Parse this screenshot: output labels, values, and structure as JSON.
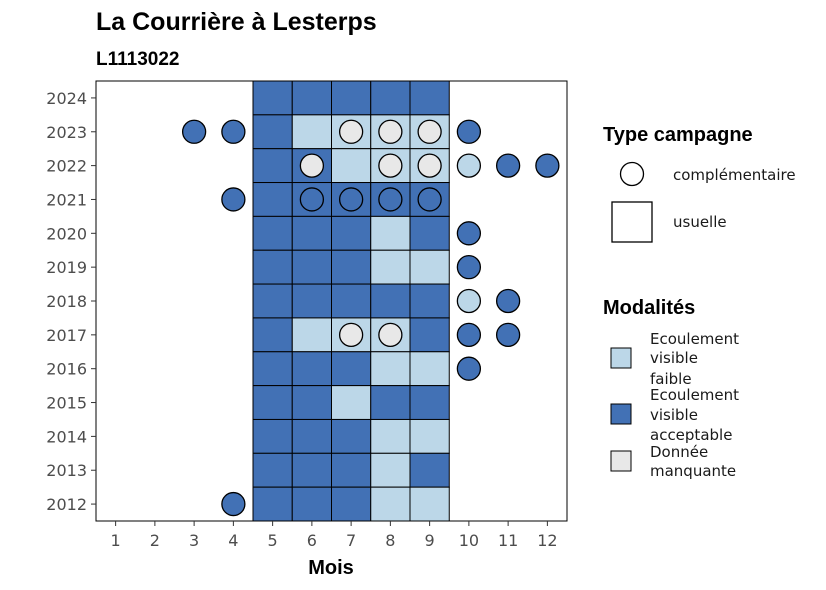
{
  "chart_data": {
    "type": "heatmap",
    "title": "La Courrière à Lesterps",
    "subtitle": "L1113022",
    "xlabel": "Mois",
    "ylabel": "",
    "x_ticks": [
      1,
      2,
      3,
      4,
      5,
      6,
      7,
      8,
      9,
      10,
      11,
      12
    ],
    "y_ticks": [
      2012,
      2013,
      2014,
      2015,
      2016,
      2017,
      2018,
      2019,
      2020,
      2021,
      2022,
      2023,
      2024
    ],
    "xlim": [
      0.5,
      12.5
    ],
    "ylim": [
      2011.5,
      2024.5
    ],
    "grid": false,
    "colors": {
      "faible": "#bcd7e8",
      "acceptable": "#4271b5",
      "manquante": "#e8e8e8"
    },
    "usuelle": [
      {
        "year": 2024,
        "months": [
          [
            "acceptable"
          ],
          [
            "acceptable"
          ],
          [
            "acceptable"
          ],
          [
            "acceptable"
          ],
          [
            "acceptable"
          ]
        ]
      },
      {
        "year": 2023,
        "cells": [
          "acceptable",
          "faible",
          "faible",
          "faible",
          "faible"
        ]
      },
      {
        "year": 2022,
        "cells": [
          "acceptable",
          "acceptable",
          "faible",
          "faible",
          "faible"
        ]
      },
      {
        "year": 2021,
        "cells": [
          "acceptable",
          "acceptable",
          "acceptable",
          "acceptable",
          "acceptable"
        ]
      },
      {
        "year": 2020,
        "cells": [
          "acceptable",
          "acceptable",
          "acceptable",
          "faible",
          "acceptable"
        ]
      },
      {
        "year": 2019,
        "cells": [
          "acceptable",
          "acceptable",
          "acceptable",
          "faible",
          "faible"
        ]
      },
      {
        "year": 2018,
        "cells": [
          "acceptable",
          "acceptable",
          "acceptable",
          "acceptable",
          "acceptable"
        ]
      },
      {
        "year": 2017,
        "cells": [
          "acceptable",
          "faible",
          "faible",
          "faible",
          "acceptable"
        ]
      },
      {
        "year": 2016,
        "cells": [
          "acceptable",
          "acceptable",
          "acceptable",
          "faible",
          "faible"
        ]
      },
      {
        "year": 2015,
        "cells": [
          "acceptable",
          "acceptable",
          "faible",
          "acceptable",
          "acceptable"
        ]
      },
      {
        "year": 2014,
        "cells": [
          "acceptable",
          "acceptable",
          "acceptable",
          "faible",
          "faible"
        ]
      },
      {
        "year": 2013,
        "cells": [
          "acceptable",
          "acceptable",
          "acceptable",
          "faible",
          "acceptable"
        ]
      },
      {
        "year": 2012,
        "cells": [
          "acceptable",
          "acceptable",
          "acceptable",
          "faible",
          "faible"
        ]
      }
    ],
    "usuelle_months": [
      5,
      6,
      7,
      8,
      9
    ],
    "complementaire": [
      {
        "year": 2023,
        "month": 3,
        "value": "acceptable"
      },
      {
        "year": 2023,
        "month": 4,
        "value": "acceptable"
      },
      {
        "year": 2023,
        "month": 7,
        "value": "manquante"
      },
      {
        "year": 2023,
        "month": 8,
        "value": "manquante"
      },
      {
        "year": 2023,
        "month": 9,
        "value": "manquante"
      },
      {
        "year": 2023,
        "month": 10,
        "value": "acceptable"
      },
      {
        "year": 2022,
        "month": 6,
        "value": "manquante"
      },
      {
        "year": 2022,
        "month": 8,
        "value": "manquante"
      },
      {
        "year": 2022,
        "month": 9,
        "value": "manquante"
      },
      {
        "year": 2022,
        "month": 10,
        "value": "faible"
      },
      {
        "year": 2022,
        "month": 11,
        "value": "acceptable"
      },
      {
        "year": 2022,
        "month": 12,
        "value": "acceptable"
      },
      {
        "year": 2021,
        "month": 4,
        "value": "acceptable"
      },
      {
        "year": 2021,
        "month": 6,
        "value": "acceptable"
      },
      {
        "year": 2021,
        "month": 7,
        "value": "acceptable"
      },
      {
        "year": 2021,
        "month": 8,
        "value": "acceptable"
      },
      {
        "year": 2021,
        "month": 9,
        "value": "acceptable"
      },
      {
        "year": 2020,
        "month": 10,
        "value": "acceptable"
      },
      {
        "year": 2019,
        "month": 10,
        "value": "acceptable"
      },
      {
        "year": 2018,
        "month": 10,
        "value": "faible"
      },
      {
        "year": 2018,
        "month": 11,
        "value": "acceptable"
      },
      {
        "year": 2017,
        "month": 7,
        "value": "manquante"
      },
      {
        "year": 2017,
        "month": 8,
        "value": "manquante"
      },
      {
        "year": 2017,
        "month": 10,
        "value": "acceptable"
      },
      {
        "year": 2017,
        "month": 11,
        "value": "acceptable"
      },
      {
        "year": 2016,
        "month": 10,
        "value": "acceptable"
      },
      {
        "year": 2012,
        "month": 4,
        "value": "acceptable"
      }
    ],
    "legend": {
      "type_title": "Type campagne",
      "type_items": [
        {
          "key": "complementaire",
          "label": "complémentaire",
          "shape": "circle"
        },
        {
          "key": "usuelle",
          "label": "usuelle",
          "shape": "square"
        }
      ],
      "modalites_title": "Modalités",
      "modalites_items": [
        {
          "key": "faible",
          "lines": [
            "Ecoulement",
            "visible",
            "faible"
          ]
        },
        {
          "key": "acceptable",
          "lines": [
            "Ecoulement",
            "visible",
            "acceptable"
          ]
        },
        {
          "key": "manquante",
          "lines": [
            "Donnée",
            "manquante"
          ]
        }
      ],
      "placement": "right"
    }
  }
}
